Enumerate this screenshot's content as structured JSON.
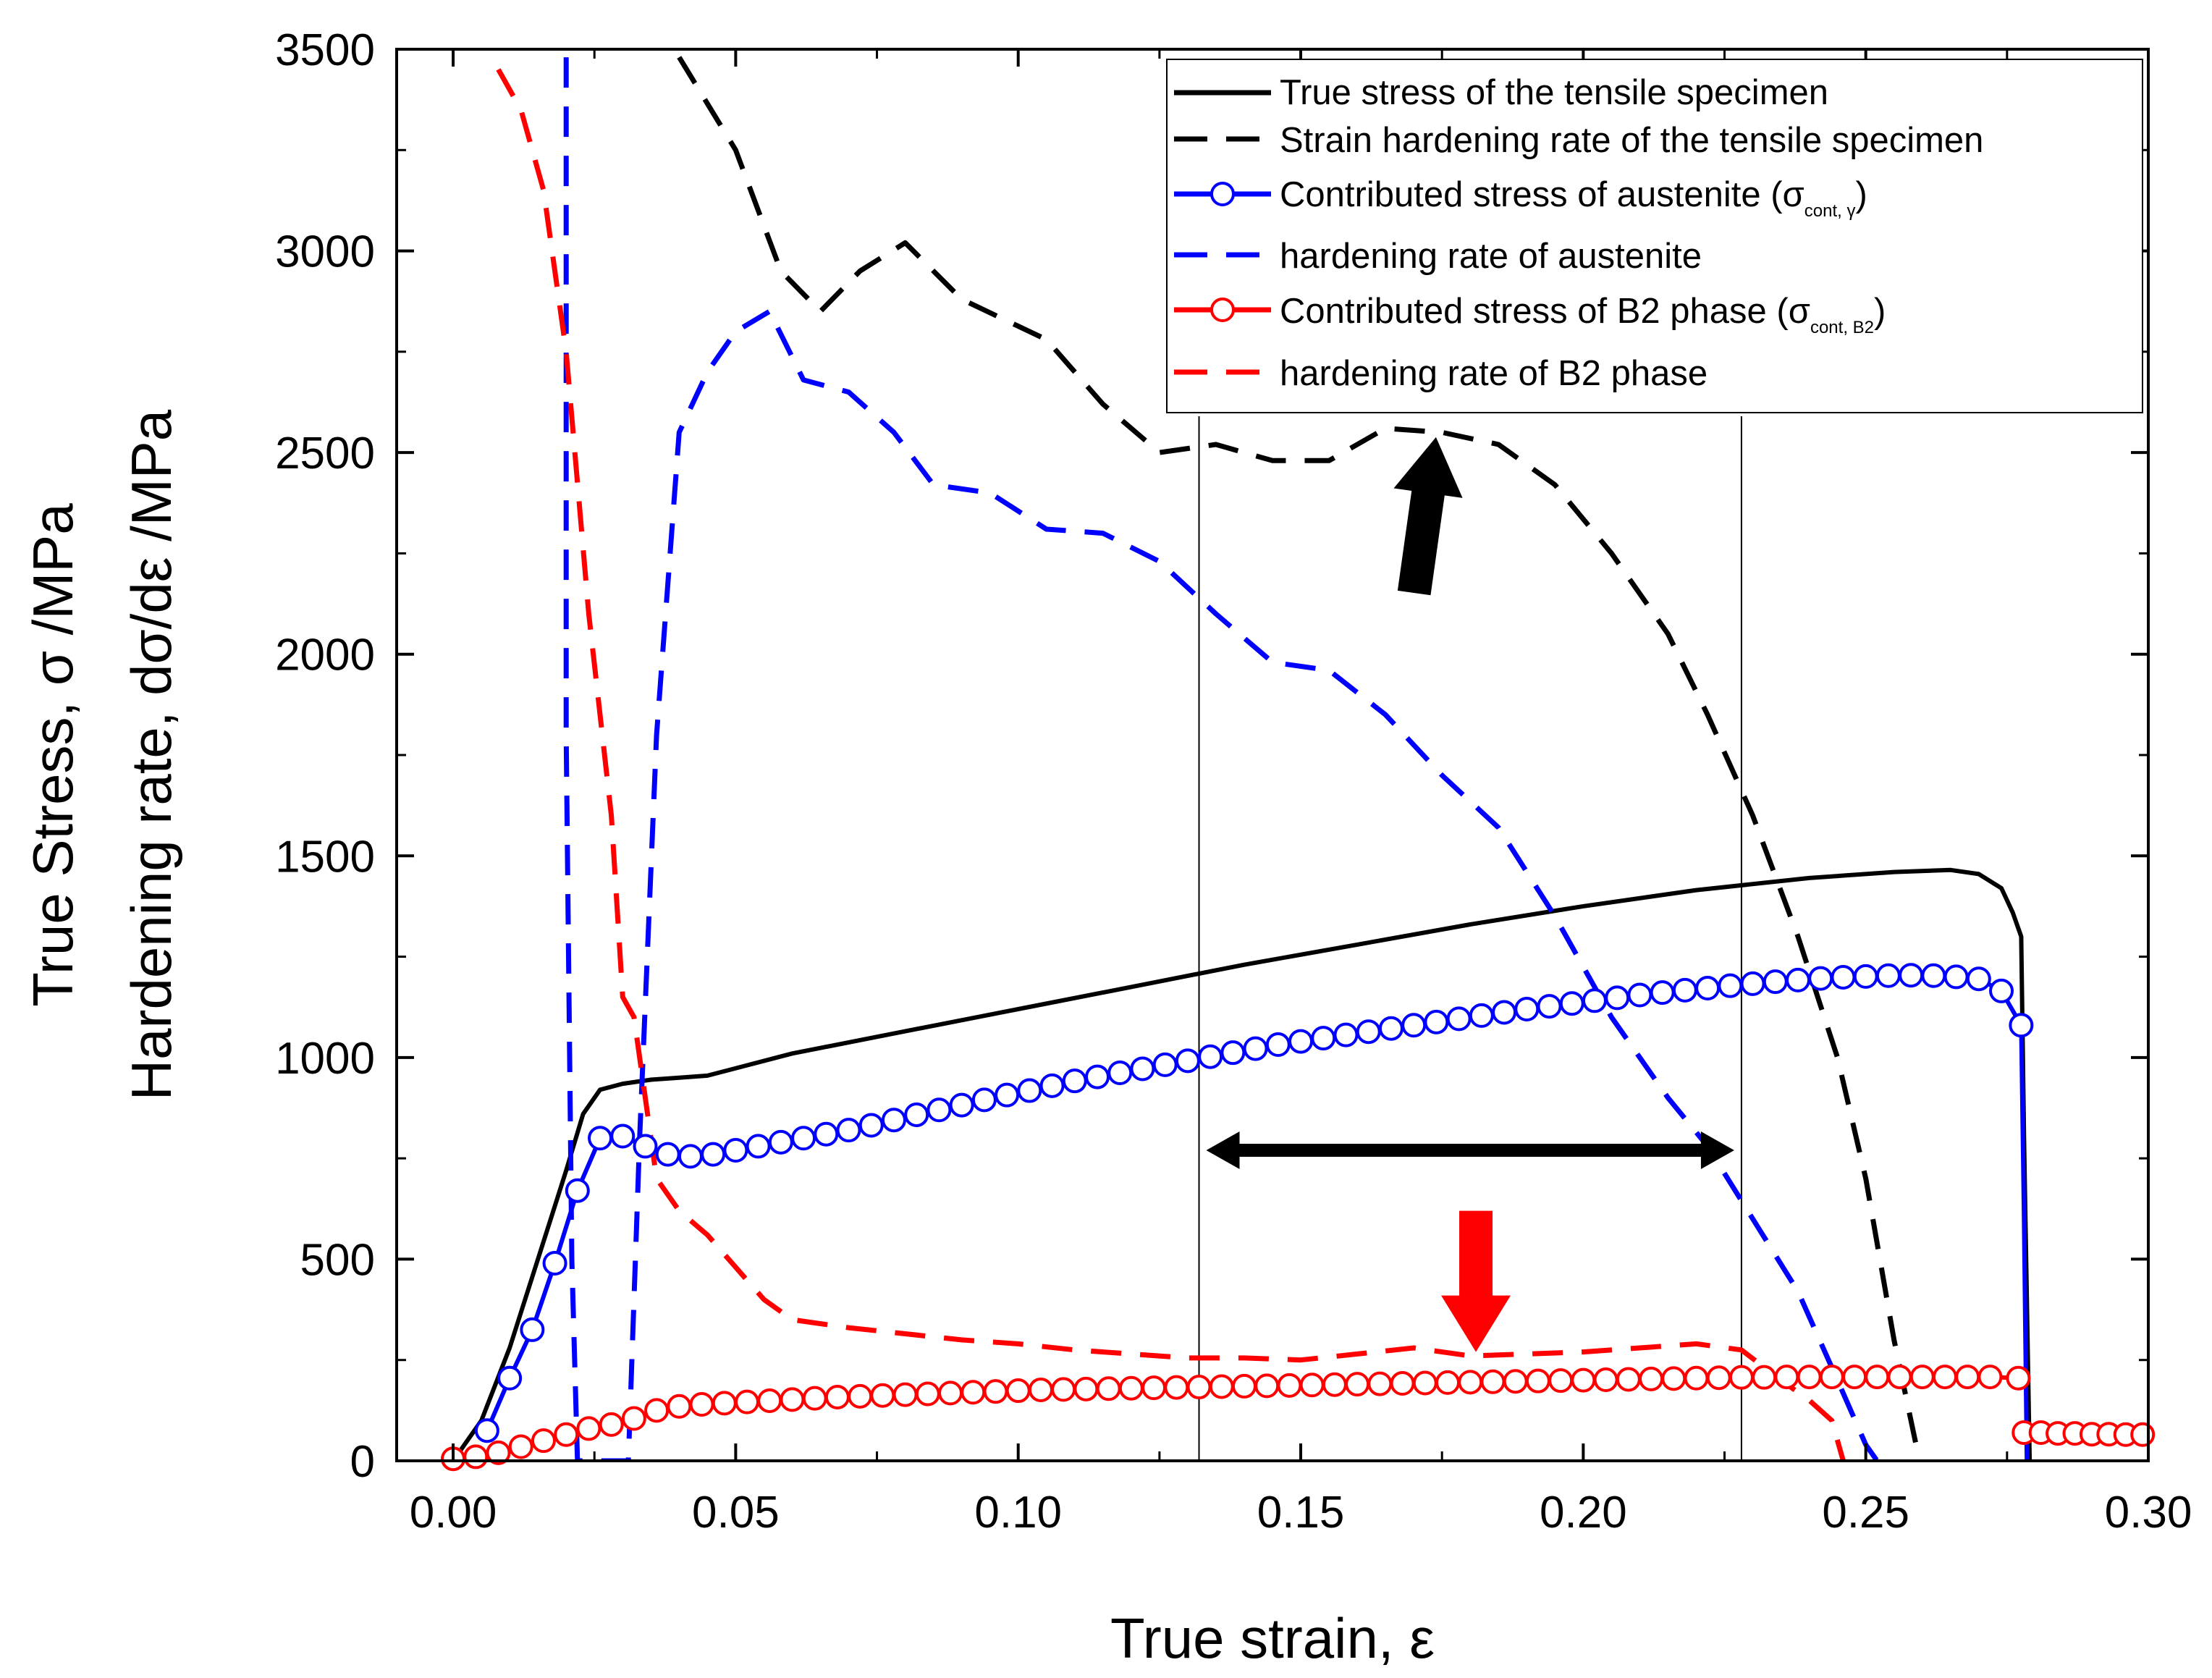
{
  "chart_data": {
    "type": "line",
    "xlabel": "True strain, ε",
    "ylabel_lines": [
      "True Stress, σ /MPa",
      "Hardening rate, dσ/dε /MPa"
    ],
    "xlim": [
      -0.01,
      0.3
    ],
    "ylim": [
      0,
      3500
    ],
    "x_ticks": [
      0.0,
      0.05,
      0.1,
      0.15,
      0.2,
      0.25,
      0.3
    ],
    "x_tick_labels": [
      "0.00",
      "0.05",
      "0.10",
      "0.15",
      "0.20",
      "0.25",
      "0.30"
    ],
    "y_ticks": [
      0,
      500,
      1000,
      1500,
      2000,
      2500,
      3000,
      3500
    ],
    "y_tick_labels": [
      "0",
      "500",
      "1000",
      "1500",
      "2000",
      "2500",
      "3000",
      "3500"
    ],
    "vertical_lines_x": [
      0.132,
      0.228
    ],
    "legend": [
      {
        "key": "true_stress",
        "label": "True stress of the tensile specimen"
      },
      {
        "key": "hardening_specimen",
        "label": "Strain hardening rate of the tensile specimen"
      },
      {
        "key": "stress_austenite",
        "label": "Contributed stress of austenite (σ",
        "sub": "cont, γ",
        "suffix": ")"
      },
      {
        "key": "hardening_austenite",
        "label": "hardening rate of austenite"
      },
      {
        "key": "stress_b2",
        "label": "Contributed stress of B2 phase (σ",
        "sub": "cont, B2",
        "suffix": ")"
      },
      {
        "key": "hardening_b2",
        "label": "hardening rate of B2 phase"
      }
    ],
    "series": [
      {
        "key": "true_stress",
        "name": "True stress of the tensile specimen",
        "color": "#000000",
        "dash": "solid",
        "marker": "none",
        "x": [
          0.0,
          0.005,
          0.01,
          0.015,
          0.02,
          0.023,
          0.026,
          0.03,
          0.035,
          0.04,
          0.045,
          0.06,
          0.08,
          0.1,
          0.12,
          0.14,
          0.16,
          0.18,
          0.2,
          0.22,
          0.24,
          0.255,
          0.265,
          0.27,
          0.274,
          0.276,
          0.2775,
          0.278,
          0.279
        ],
        "y": [
          0,
          100,
          280,
          500,
          720,
          860,
          920,
          935,
          945,
          950,
          955,
          1010,
          1065,
          1120,
          1175,
          1230,
          1280,
          1330,
          1375,
          1415,
          1445,
          1460,
          1465,
          1455,
          1420,
          1360,
          1300,
          800,
          0
        ]
      },
      {
        "key": "hardening_specimen",
        "name": "Strain hardening rate of the tensile specimen",
        "color": "#000000",
        "dash": "dash",
        "marker": "none",
        "x": [
          0.04,
          0.05,
          0.058,
          0.065,
          0.072,
          0.08,
          0.09,
          0.105,
          0.115,
          0.125,
          0.135,
          0.145,
          0.155,
          0.165,
          0.175,
          0.185,
          0.195,
          0.205,
          0.215,
          0.222,
          0.23,
          0.238,
          0.245,
          0.25,
          0.255,
          0.2595
        ],
        "y": [
          3480,
          3250,
          2950,
          2850,
          2950,
          3020,
          2880,
          2780,
          2620,
          2500,
          2520,
          2480,
          2480,
          2560,
          2550,
          2520,
          2420,
          2250,
          2050,
          1850,
          1600,
          1300,
          1000,
          700,
          300,
          0
        ]
      },
      {
        "key": "stress_austenite",
        "name": "Contributed stress of austenite (σcont, γ)",
        "color": "#0000ff",
        "dash": "solid",
        "marker": "open-circle",
        "x": [
          0.006,
          0.01,
          0.014,
          0.018,
          0.022,
          0.026,
          0.03,
          0.034,
          0.038,
          0.042,
          0.046,
          0.05,
          0.054,
          0.058,
          0.062,
          0.066,
          0.07,
          0.074,
          0.078,
          0.082,
          0.086,
          0.09,
          0.094,
          0.098,
          0.102,
          0.106,
          0.11,
          0.114,
          0.118,
          0.122,
          0.126,
          0.13,
          0.134,
          0.138,
          0.142,
          0.146,
          0.15,
          0.154,
          0.158,
          0.162,
          0.166,
          0.17,
          0.174,
          0.178,
          0.182,
          0.186,
          0.19,
          0.194,
          0.198,
          0.202,
          0.206,
          0.21,
          0.214,
          0.218,
          0.222,
          0.226,
          0.23,
          0.234,
          0.238,
          0.242,
          0.246,
          0.25,
          0.254,
          0.258,
          0.262,
          0.266,
          0.27,
          0.274,
          0.2775
        ],
        "y": [
          75,
          205,
          325,
          490,
          670,
          800,
          805,
          780,
          760,
          755,
          760,
          770,
          780,
          790,
          800,
          810,
          820,
          832,
          845,
          858,
          870,
          882,
          895,
          907,
          918,
          930,
          942,
          952,
          962,
          972,
          982,
          992,
          1002,
          1012,
          1022,
          1032,
          1040,
          1048,
          1056,
          1064,
          1072,
          1080,
          1088,
          1096,
          1104,
          1112,
          1120,
          1127,
          1134,
          1141,
          1148,
          1155,
          1161,
          1167,
          1172,
          1178,
          1183,
          1188,
          1192,
          1196,
          1199,
          1201,
          1203,
          1204,
          1203,
          1200,
          1195,
          1165,
          1080
        ]
      },
      {
        "key": "stress_austenite_drop",
        "name": "",
        "color": "#0000ff",
        "dash": "solid",
        "marker": "none",
        "x": [
          0.2775,
          0.278,
          0.2785
        ],
        "y": [
          1080,
          600,
          0
        ]
      },
      {
        "key": "hardening_austenite",
        "name": "hardening rate of austenite",
        "color": "#0000ff",
        "dash": "dash",
        "marker": "none",
        "x": [
          0.02,
          0.02,
          0.021,
          0.022,
          0.031,
          0.033,
          0.036,
          0.04,
          0.045,
          0.05,
          0.056,
          0.062,
          0.07,
          0.078,
          0.085,
          0.095,
          0.105,
          0.115,
          0.125,
          0.135,
          0.145,
          0.155,
          0.165,
          0.175,
          0.185,
          0.195,
          0.205,
          0.215,
          0.222,
          0.23,
          0.238,
          0.245,
          0.25,
          0.252
        ],
        "y": [
          3480,
          1800,
          500,
          0,
          0,
          800,
          1800,
          2550,
          2700,
          2800,
          2850,
          2680,
          2650,
          2550,
          2420,
          2400,
          2310,
          2300,
          2230,
          2100,
          1980,
          1960,
          1850,
          1700,
          1570,
          1350,
          1100,
          900,
          780,
          600,
          420,
          200,
          40,
          0
        ]
      },
      {
        "key": "stress_b2",
        "name": "Contributed stress of B2 phase (σcont, B2)",
        "color": "#ff0000",
        "dash": "solid",
        "marker": "open-circle",
        "x": [
          0.0,
          0.004,
          0.008,
          0.012,
          0.016,
          0.02,
          0.024,
          0.028,
          0.032,
          0.036,
          0.04,
          0.044,
          0.048,
          0.052,
          0.056,
          0.06,
          0.064,
          0.068,
          0.072,
          0.076,
          0.08,
          0.084,
          0.088,
          0.092,
          0.096,
          0.1,
          0.104,
          0.108,
          0.112,
          0.116,
          0.12,
          0.124,
          0.128,
          0.132,
          0.136,
          0.14,
          0.144,
          0.148,
          0.152,
          0.156,
          0.16,
          0.164,
          0.168,
          0.172,
          0.176,
          0.18,
          0.184,
          0.188,
          0.192,
          0.196,
          0.2,
          0.204,
          0.208,
          0.212,
          0.216,
          0.22,
          0.224,
          0.228,
          0.232,
          0.236,
          0.24,
          0.244,
          0.248,
          0.252,
          0.256,
          0.26,
          0.264,
          0.268,
          0.272,
          0.277
        ],
        "y": [
          5,
          10,
          20,
          35,
          50,
          65,
          80,
          90,
          105,
          125,
          135,
          140,
          143,
          146,
          149,
          152,
          155,
          158,
          160,
          162,
          164,
          166,
          168,
          170,
          172,
          174,
          176,
          177,
          178,
          179,
          180,
          181,
          182,
          183,
          184,
          185,
          186,
          187,
          188,
          189,
          190,
          191,
          192,
          193,
          194,
          195,
          196,
          197,
          198,
          199,
          200,
          201,
          202,
          203,
          204,
          205,
          206,
          207,
          207,
          208,
          208,
          208,
          208,
          208,
          208,
          208,
          208,
          208,
          208,
          205
        ]
      },
      {
        "key": "stress_b2_tail",
        "name": "",
        "color": "#ff0000",
        "dash": "solid",
        "marker": "open-circle",
        "x": [
          0.278,
          0.281,
          0.284,
          0.287,
          0.29,
          0.293,
          0.296,
          0.299
        ],
        "y": [
          70,
          70,
          68,
          68,
          66,
          66,
          65,
          65
        ]
      },
      {
        "key": "hardening_b2",
        "name": "hardening rate of B2 phase",
        "color": "#ff0000",
        "dash": "dash",
        "marker": "none",
        "x": [
          0.008,
          0.012,
          0.016,
          0.02,
          0.024,
          0.028,
          0.03,
          0.032,
          0.034,
          0.036,
          0.04,
          0.045,
          0.05,
          0.055,
          0.06,
          0.07,
          0.08,
          0.09,
          0.1,
          0.11,
          0.12,
          0.13,
          0.14,
          0.15,
          0.16,
          0.17,
          0.18,
          0.19,
          0.2,
          0.21,
          0.22,
          0.228,
          0.235,
          0.24,
          0.244,
          0.246
        ],
        "y": [
          3450,
          3350,
          3150,
          2750,
          2100,
          1600,
          1150,
          1100,
          900,
          700,
          620,
          560,
          480,
          400,
          350,
          330,
          315,
          300,
          290,
          275,
          265,
          255,
          255,
          250,
          265,
          280,
          260,
          265,
          270,
          280,
          290,
          275,
          200,
          150,
          100,
          0
        ]
      }
    ],
    "arrows": [
      {
        "type": "up",
        "color": "#000000",
        "x": 0.172,
        "y_from": 2150,
        "y_to": 2540
      },
      {
        "type": "down",
        "color": "#ff0000",
        "x": 0.181,
        "y_from": 620,
        "y_to": 270
      },
      {
        "type": "double",
        "color": "#000000",
        "x_from": 0.132,
        "x_to": 0.228,
        "y": 770
      }
    ]
  }
}
